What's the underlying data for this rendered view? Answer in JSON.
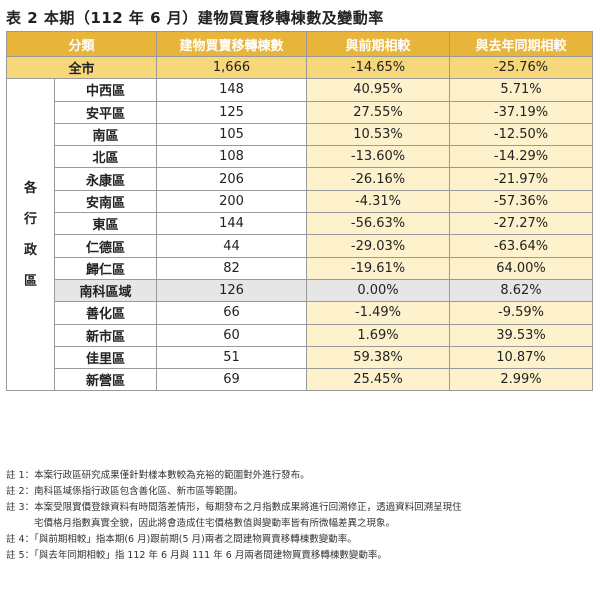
{
  "title": "表 2 本期（112 年 6 月）建物買賣移轉棟數及變動率",
  "headers": [
    "分類",
    "建物買賣移轉棟數",
    "與前期相較",
    "與去年同期相較"
  ],
  "total": {
    "name": "全市",
    "count": "1,666",
    "prev": "-14.65%",
    "yoy": "-25.76%"
  },
  "side_label": [
    "各",
    "行",
    "政",
    "區"
  ],
  "rows": [
    {
      "name": "中西區",
      "count": "148",
      "prev": "40.95%",
      "yoy": "5.71%"
    },
    {
      "name": "安平區",
      "count": "125",
      "prev": "27.55%",
      "yoy": "-37.19%"
    },
    {
      "name": "南區",
      "count": "105",
      "prev": "10.53%",
      "yoy": "-12.50%"
    },
    {
      "name": "北區",
      "count": "108",
      "prev": "-13.60%",
      "yoy": "-14.29%"
    },
    {
      "name": "永康區",
      "count": "206",
      "prev": "-26.16%",
      "yoy": "-21.97%"
    },
    {
      "name": "安南區",
      "count": "200",
      "prev": "-4.31%",
      "yoy": "-57.36%"
    },
    {
      "name": "東區",
      "count": "144",
      "prev": "-56.63%",
      "yoy": "-27.27%"
    },
    {
      "name": "仁德區",
      "count": "44",
      "prev": "-29.03%",
      "yoy": "-63.64%"
    },
    {
      "name": "歸仁區",
      "count": "82",
      "prev": "-19.61%",
      "yoy": "64.00%"
    }
  ],
  "nanke": {
    "name": "南科區域",
    "count": "126",
    "prev": "0.00%",
    "yoy": "8.62%"
  },
  "rows2": [
    {
      "name": "善化區",
      "count": "66",
      "prev": "-1.49%",
      "yoy": "-9.59%"
    },
    {
      "name": "新市區",
      "count": "60",
      "prev": "1.69%",
      "yoy": "39.53%"
    },
    {
      "name": "佳里區",
      "count": "51",
      "prev": "59.38%",
      "yoy": "10.87%"
    },
    {
      "name": "新營區",
      "count": "69",
      "prev": "25.45%",
      "yoy": "2.99%"
    }
  ],
  "notes": [
    "註 1：本案行政區研究成果僅針對樣本數較為充裕的範圍對外進行發布。",
    "註 2：南科區域係指行政區包含善化區、新市區等範圍。",
    "註 3：本案受限實價登錄資料有時間落差情形，每期發布之月指數成果將進行回溯修正，透過資料回溯呈現住",
    "宅價格月指數真實全貌，因此將會造成住宅價格數值與變動率皆有所微幅差異之現象。",
    "註 4：「與前期相較」指本期(6 月)跟前期(5 月)兩者之間建物買賣移轉棟數變動率。",
    "註 5：「與去年同期相較」指 112 年 6 月與 111 年 6 月兩者間建物買賣移轉棟數變動率。"
  ]
}
